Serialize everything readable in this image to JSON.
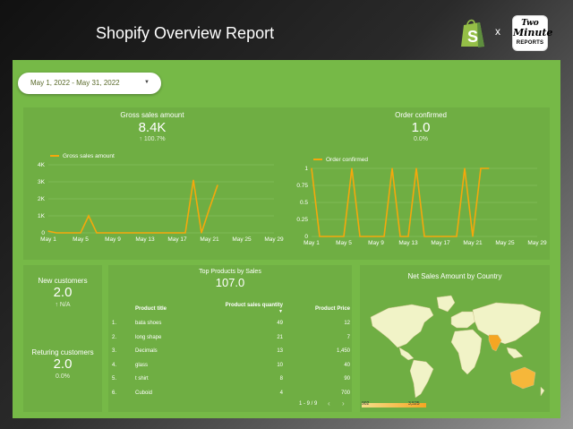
{
  "header": {
    "title": "Shopify Overview Report",
    "x_separator": "x",
    "partner_logo": {
      "line1": "Two",
      "line2": "Minute",
      "line3": "REPORTS"
    }
  },
  "date_range": {
    "label": "May 1, 2022 - May 31, 2022"
  },
  "gross_sales": {
    "label": "Gross sales amount",
    "value": "8.4K",
    "delta": "↑ 100.7%"
  },
  "orders": {
    "label": "Order confirmed",
    "value": "1.0",
    "delta": "0.0%"
  },
  "new_customers": {
    "label": "New customers",
    "value": "2.0",
    "delta": "↑ N/A"
  },
  "returning_customers": {
    "label": "Returing customers",
    "value": "2.0",
    "delta": "0.0%"
  },
  "top_products": {
    "title": "Top Products by Sales",
    "total": "107.0",
    "columns": [
      "Product title",
      "Product sales quantity",
      "Product Price"
    ],
    "rows": [
      {
        "idx": "1.",
        "title": "bata shoes",
        "qty": "49",
        "price": "12"
      },
      {
        "idx": "2.",
        "title": "long shape",
        "qty": "21",
        "price": "7"
      },
      {
        "idx": "3.",
        "title": "Decimals",
        "qty": "13",
        "price": "1,450"
      },
      {
        "idx": "4.",
        "title": "glass",
        "qty": "10",
        "price": "40"
      },
      {
        "idx": "5.",
        "title": "t shirt",
        "qty": "8",
        "price": "90"
      },
      {
        "idx": "6.",
        "title": "Cuboid",
        "qty": "4",
        "price": "700"
      }
    ],
    "pagination": "1 - 9 / 9",
    "prev_icon": "chevron-left-icon",
    "next_icon": "chevron-right-icon"
  },
  "map": {
    "title": "Net Sales Amount by Country",
    "legend_min": "902",
    "legend_max": "3,525",
    "colors": {
      "land": "#f1f3c7",
      "low": "#f6c54a",
      "high": "#f5a623",
      "water": "#76b947"
    }
  },
  "colors": {
    "line": "#f5a80c",
    "canvas": "#76b947",
    "panel": "#6fae43"
  },
  "chart_data": [
    {
      "type": "line",
      "title": "Gross sales amount",
      "x": [
        "May 1",
        "May 2",
        "May 3",
        "May 4",
        "May 5",
        "May 6",
        "May 7",
        "May 8",
        "May 9",
        "May 10",
        "May 11",
        "May 12",
        "May 13",
        "May 14",
        "May 15",
        "May 16",
        "May 17",
        "May 18",
        "May 19",
        "May 20",
        "May 21",
        "May 22"
      ],
      "series": [
        {
          "name": "Gross sales amount",
          "values": [
            100,
            0,
            0,
            0,
            0,
            1000,
            0,
            0,
            0,
            0,
            0,
            0,
            0,
            0,
            0,
            0,
            0,
            0,
            3100,
            0,
            1450,
            2800
          ]
        }
      ],
      "x_ticks": [
        "May 1",
        "May 5",
        "May 9",
        "May 13",
        "May 17",
        "May 21",
        "May 25",
        "May 29"
      ],
      "y_ticks": [
        "0",
        "1K",
        "2K",
        "3K",
        "4K"
      ],
      "ylim": [
        0,
        4000
      ],
      "legend": "top-left",
      "grid": true
    },
    {
      "type": "line",
      "title": "Order confirmed",
      "x": [
        "May 1",
        "May 2",
        "May 3",
        "May 4",
        "May 5",
        "May 6",
        "May 7",
        "May 8",
        "May 9",
        "May 10",
        "May 11",
        "May 12",
        "May 13",
        "May 14",
        "May 15",
        "May 16",
        "May 17",
        "May 18",
        "May 19",
        "May 20",
        "May 21",
        "May 22",
        "May 23"
      ],
      "series": [
        {
          "name": "Order confirmed",
          "values": [
            1,
            0,
            0,
            0,
            0,
            1,
            0,
            0,
            0,
            0,
            1,
            0,
            0,
            1,
            0,
            0,
            0,
            0,
            0,
            1,
            0,
            1,
            1
          ]
        }
      ],
      "x_ticks": [
        "May 1",
        "May 5",
        "May 9",
        "May 13",
        "May 17",
        "May 21",
        "May 25",
        "May 29"
      ],
      "y_ticks": [
        "0",
        "0.25",
        "0.5",
        "0.75",
        "1"
      ],
      "ylim": [
        0,
        1
      ],
      "legend": "top-left",
      "grid": true
    }
  ]
}
